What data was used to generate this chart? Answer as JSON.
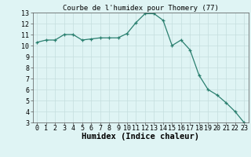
{
  "x": [
    0,
    1,
    2,
    3,
    4,
    5,
    6,
    7,
    8,
    9,
    10,
    11,
    12,
    13,
    14,
    15,
    16,
    17,
    18,
    19,
    20,
    21,
    22,
    23
  ],
  "y": [
    10.3,
    10.5,
    10.5,
    11.0,
    11.0,
    10.5,
    10.6,
    10.7,
    10.7,
    10.7,
    11.1,
    12.1,
    12.9,
    12.9,
    12.3,
    10.0,
    10.5,
    9.6,
    7.3,
    6.0,
    5.5,
    4.8,
    4.0,
    3.0
  ],
  "title": "Courbe de l'humidex pour Thomery (77)",
  "xlabel": "Humidex (Indice chaleur)",
  "ylabel": "",
  "ylim": [
    3,
    13
  ],
  "xlim": [
    -0.5,
    23.5
  ],
  "yticks": [
    3,
    4,
    5,
    6,
    7,
    8,
    9,
    10,
    11,
    12,
    13
  ],
  "xticks": [
    0,
    1,
    2,
    3,
    4,
    5,
    6,
    7,
    8,
    9,
    10,
    11,
    12,
    13,
    14,
    15,
    16,
    17,
    18,
    19,
    20,
    21,
    22,
    23
  ],
  "line_color": "#2a7f6f",
  "marker": "+",
  "bg_color": "#dff4f4",
  "grid_color": "#c4dede",
  "title_fontsize": 6.5,
  "label_fontsize": 7.5,
  "tick_fontsize": 6
}
